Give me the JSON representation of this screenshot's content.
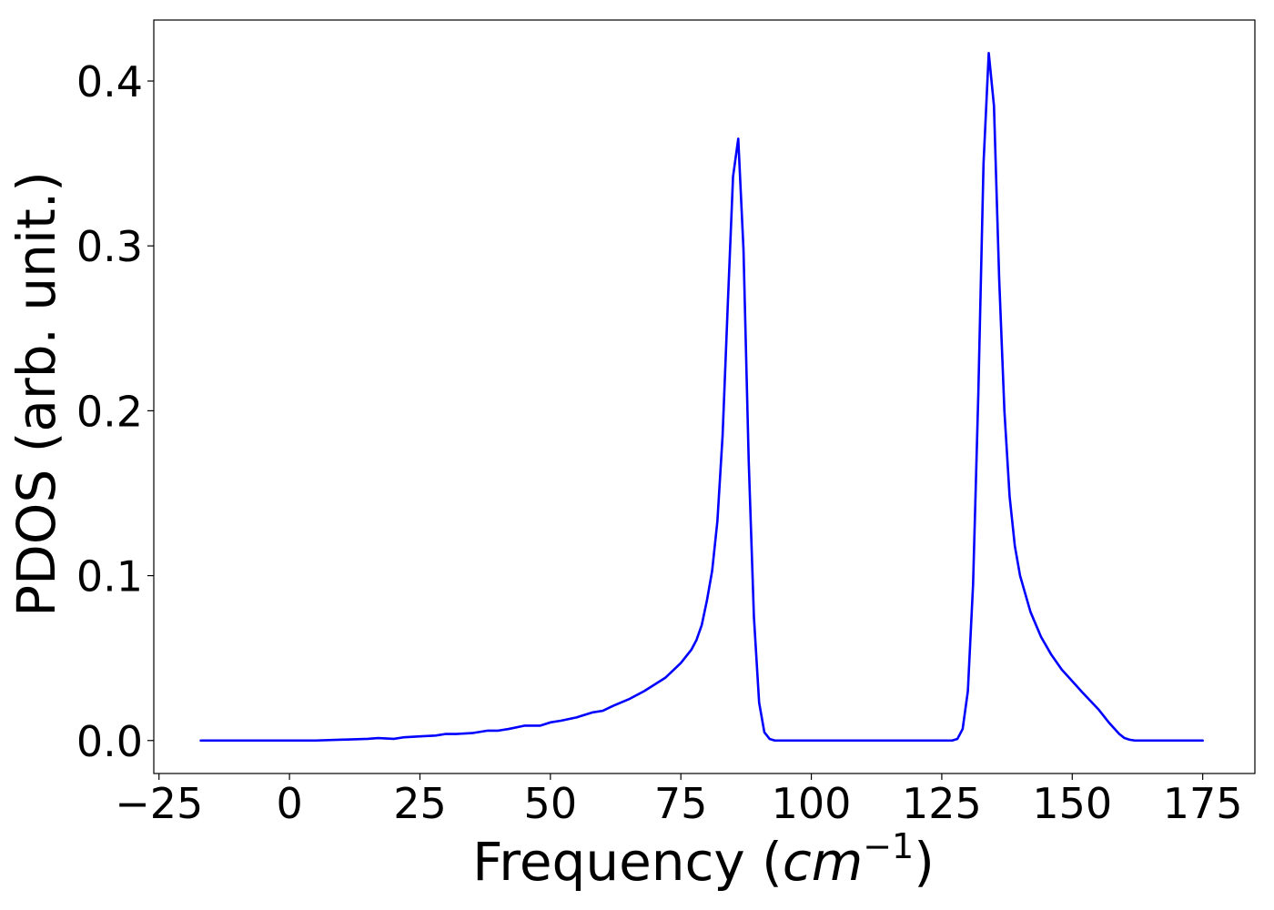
{
  "chart_data": {
    "type": "line",
    "title": "",
    "xlabel": "Frequency (",
    "xlabel_math": "cm",
    "xlabel_exp": "−1",
    "xlabel_close": ")",
    "ylabel": "PDOS (arb. unit.)",
    "xlim": [
      -26,
      185
    ],
    "ylim": [
      -0.02,
      0.437
    ],
    "xticks": [
      -25,
      0,
      25,
      50,
      75,
      100,
      125,
      150,
      175
    ],
    "xtick_labels": [
      "−25",
      "0",
      "25",
      "50",
      "75",
      "100",
      "125",
      "150",
      "175"
    ],
    "yticks": [
      0.0,
      0.1,
      0.2,
      0.3,
      0.4
    ],
    "ytick_labels": [
      "0.0",
      "0.1",
      "0.2",
      "0.3",
      "0.4"
    ],
    "grid": false,
    "series": [
      {
        "color": "#0000ff",
        "x": [
          -17,
          0,
          5,
          10,
          15,
          17,
          20,
          22,
          25,
          28,
          30,
          32,
          35,
          38,
          40,
          42,
          45,
          48,
          50,
          52,
          55,
          58,
          60,
          62,
          65,
          68,
          70,
          72,
          75,
          77,
          78,
          79,
          80,
          81,
          82,
          83,
          84,
          85,
          86,
          87,
          88,
          89,
          90,
          91,
          92,
          93,
          100,
          110,
          120,
          127,
          128,
          129,
          130,
          131,
          132,
          133,
          134,
          135,
          136,
          137,
          138,
          139,
          140,
          142,
          144,
          146,
          148,
          150,
          152,
          155,
          157,
          159,
          160,
          161,
          162,
          163,
          165,
          170,
          175
        ],
        "y": [
          0.0,
          0.0,
          0.0,
          0.0005,
          0.001,
          0.0015,
          0.001,
          0.002,
          0.0025,
          0.003,
          0.004,
          0.004,
          0.0045,
          0.006,
          0.006,
          0.007,
          0.009,
          0.009,
          0.011,
          0.012,
          0.014,
          0.017,
          0.018,
          0.021,
          0.025,
          0.03,
          0.034,
          0.038,
          0.047,
          0.055,
          0.061,
          0.07,
          0.085,
          0.103,
          0.133,
          0.185,
          0.265,
          0.342,
          0.365,
          0.298,
          0.17,
          0.075,
          0.023,
          0.005,
          0.001,
          0.0,
          0.0,
          0.0,
          0.0,
          0.0,
          0.001,
          0.007,
          0.03,
          0.095,
          0.21,
          0.35,
          0.417,
          0.385,
          0.28,
          0.2,
          0.148,
          0.118,
          0.1,
          0.078,
          0.063,
          0.052,
          0.043,
          0.036,
          0.029,
          0.019,
          0.011,
          0.004,
          0.0015,
          0.0005,
          0.0,
          0.0,
          0.0,
          0.0,
          0.0
        ]
      }
    ]
  }
}
